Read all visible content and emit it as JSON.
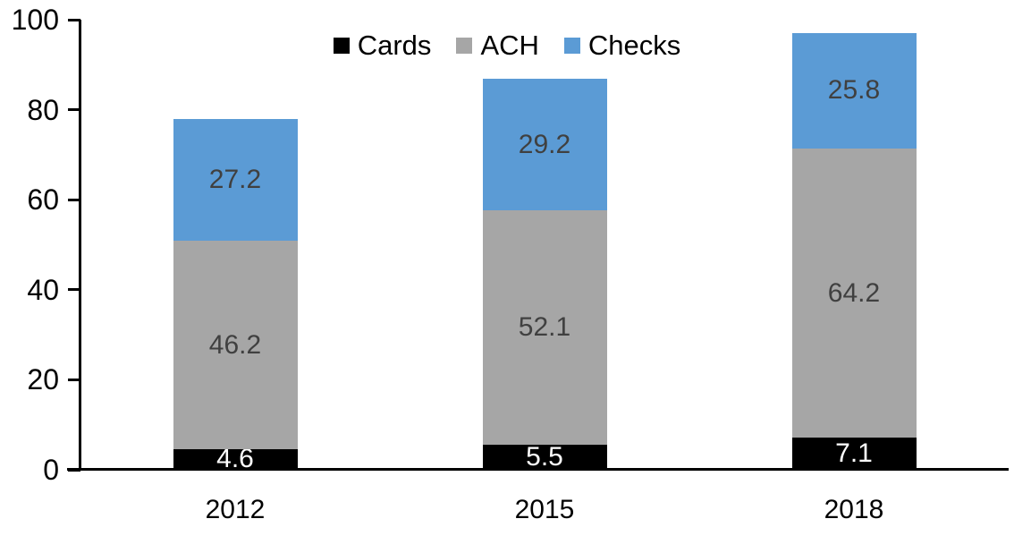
{
  "chart_data": {
    "type": "bar",
    "stacked": true,
    "title": "",
    "categories": [
      "2012",
      "2015",
      "2018"
    ],
    "series": [
      {
        "name": "Cards",
        "color": "#000000",
        "label_color": "#ffffff",
        "values": [
          4.6,
          5.5,
          7.1
        ]
      },
      {
        "name": "ACH",
        "color": "#a6a6a6",
        "label_color": "#404040",
        "values": [
          46.2,
          52.1,
          64.2
        ]
      },
      {
        "name": "Checks",
        "color": "#5b9bd5",
        "label_color": "#404040",
        "values": [
          27.2,
          29.2,
          25.8
        ]
      }
    ],
    "xlabel": "",
    "ylabel": "",
    "ylim": [
      0,
      100
    ],
    "yticks": [
      0,
      20,
      40,
      60,
      80,
      100
    ],
    "grid": false,
    "legend_position": "top-center",
    "data_labels": true
  },
  "colors": {
    "background": "#ffffff",
    "axis": "#000000",
    "tick_label": "#000000"
  }
}
